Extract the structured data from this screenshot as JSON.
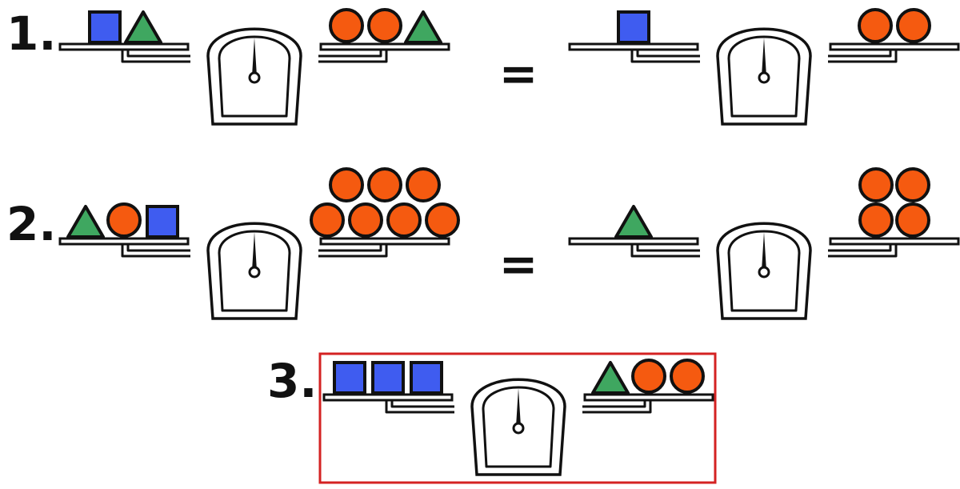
{
  "puzzle": {
    "rows": [
      {
        "label": "1.",
        "relation": "=",
        "scales": [
          {
            "left": [
              "square",
              "triangle"
            ],
            "right": [
              "circle",
              "circle",
              "triangle"
            ]
          },
          {
            "left": [
              "square"
            ],
            "right": [
              "circle",
              "circle"
            ]
          }
        ]
      },
      {
        "label": "2.",
        "relation": "=",
        "scales": [
          {
            "left": [
              "triangle",
              "circle",
              "square"
            ],
            "right": [
              "circle",
              "circle",
              "circle",
              "circle",
              "circle",
              "circle",
              "circle"
            ]
          },
          {
            "left": [
              "triangle"
            ],
            "right": [
              "circle",
              "circle",
              "circle",
              "circle"
            ]
          }
        ]
      },
      {
        "label": "3.",
        "highlighted": true,
        "scales": [
          {
            "left": [
              "square",
              "square",
              "square"
            ],
            "right": [
              "triangle",
              "circle",
              "circle"
            ]
          }
        ]
      }
    ]
  },
  "colors": {
    "square": "#3f5cf0",
    "triangle": "#3fa760",
    "circle": "#f55a10",
    "outline": "#111111",
    "highlight_frame": "#d42222"
  },
  "icons": {
    "square": "blue-square-icon",
    "triangle": "green-triangle-icon",
    "circle": "orange-circle-icon",
    "scale": "balance-scale-icon"
  }
}
